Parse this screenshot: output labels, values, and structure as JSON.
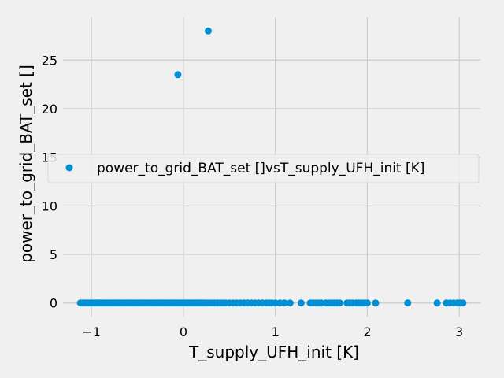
{
  "chart_data": {
    "type": "scatter",
    "title": "",
    "xlabel": "T_supply_UFH_init [K]",
    "ylabel": "power_to_grid_BAT_set []",
    "xlim": [
      -1.31,
      3.23
    ],
    "ylim": [
      -1.4,
      29.4
    ],
    "xticks": [
      -1,
      0,
      1,
      2,
      3
    ],
    "xtick_labels": [
      "−1",
      "0",
      "1",
      "2",
      "3"
    ],
    "yticks": [
      0,
      5,
      10,
      15,
      20,
      25
    ],
    "ytick_labels": [
      "0",
      "5",
      "10",
      "15",
      "20",
      "25"
    ],
    "grid": true,
    "legend_position": "center-right",
    "marker_color": "#008fd5",
    "series": [
      {
        "name": "power_to_grid_BAT_set []vsT_supply_UFH_init [K]",
        "points": [
          {
            "x": 0.27,
            "y": 28.0
          },
          {
            "x": -0.06,
            "y": 23.5
          },
          {
            "x": -1.12,
            "y": 0
          },
          {
            "x": -1.1,
            "y": 0
          },
          {
            "x": -1.08,
            "y": 0
          },
          {
            "x": -1.06,
            "y": 0
          },
          {
            "x": -1.04,
            "y": 0
          },
          {
            "x": -1.02,
            "y": 0
          },
          {
            "x": -1.0,
            "y": 0
          },
          {
            "x": -0.98,
            "y": 0
          },
          {
            "x": -0.96,
            "y": 0
          },
          {
            "x": -0.94,
            "y": 0
          },
          {
            "x": -0.92,
            "y": 0
          },
          {
            "x": -0.9,
            "y": 0
          },
          {
            "x": -0.88,
            "y": 0
          },
          {
            "x": -0.86,
            "y": 0
          },
          {
            "x": -0.84,
            "y": 0
          },
          {
            "x": -0.82,
            "y": 0
          },
          {
            "x": -0.8,
            "y": 0
          },
          {
            "x": -0.78,
            "y": 0
          },
          {
            "x": -0.76,
            "y": 0
          },
          {
            "x": -0.74,
            "y": 0
          },
          {
            "x": -0.72,
            "y": 0
          },
          {
            "x": -0.7,
            "y": 0
          },
          {
            "x": -0.68,
            "y": 0
          },
          {
            "x": -0.66,
            "y": 0
          },
          {
            "x": -0.64,
            "y": 0
          },
          {
            "x": -0.62,
            "y": 0
          },
          {
            "x": -0.6,
            "y": 0
          },
          {
            "x": -0.58,
            "y": 0
          },
          {
            "x": -0.56,
            "y": 0
          },
          {
            "x": -0.54,
            "y": 0
          },
          {
            "x": -0.52,
            "y": 0
          },
          {
            "x": -0.5,
            "y": 0
          },
          {
            "x": -0.48,
            "y": 0
          },
          {
            "x": -0.46,
            "y": 0
          },
          {
            "x": -0.44,
            "y": 0
          },
          {
            "x": -0.42,
            "y": 0
          },
          {
            "x": -0.4,
            "y": 0
          },
          {
            "x": -0.38,
            "y": 0
          },
          {
            "x": -0.36,
            "y": 0
          },
          {
            "x": -0.34,
            "y": 0
          },
          {
            "x": -0.32,
            "y": 0
          },
          {
            "x": -0.3,
            "y": 0
          },
          {
            "x": -0.28,
            "y": 0
          },
          {
            "x": -0.26,
            "y": 0
          },
          {
            "x": -0.24,
            "y": 0
          },
          {
            "x": -0.22,
            "y": 0
          },
          {
            "x": -0.2,
            "y": 0
          },
          {
            "x": -0.18,
            "y": 0
          },
          {
            "x": -0.16,
            "y": 0
          },
          {
            "x": -0.14,
            "y": 0
          },
          {
            "x": -0.12,
            "y": 0
          },
          {
            "x": -0.1,
            "y": 0
          },
          {
            "x": -0.08,
            "y": 0
          },
          {
            "x": -0.06,
            "y": 0
          },
          {
            "x": -0.04,
            "y": 0
          },
          {
            "x": -0.02,
            "y": 0
          },
          {
            "x": 0.0,
            "y": 0
          },
          {
            "x": 0.02,
            "y": 0
          },
          {
            "x": 0.04,
            "y": 0
          },
          {
            "x": 0.06,
            "y": 0
          },
          {
            "x": 0.08,
            "y": 0
          },
          {
            "x": 0.1,
            "y": 0
          },
          {
            "x": 0.12,
            "y": 0
          },
          {
            "x": 0.14,
            "y": 0
          },
          {
            "x": 0.16,
            "y": 0
          },
          {
            "x": 0.18,
            "y": 0
          },
          {
            "x": 0.2,
            "y": 0
          },
          {
            "x": 0.22,
            "y": 0
          },
          {
            "x": 0.25,
            "y": 0
          },
          {
            "x": 0.28,
            "y": 0
          },
          {
            "x": 0.31,
            "y": 0
          },
          {
            "x": 0.34,
            "y": 0
          },
          {
            "x": 0.37,
            "y": 0
          },
          {
            "x": 0.4,
            "y": 0
          },
          {
            "x": 0.43,
            "y": 0
          },
          {
            "x": 0.46,
            "y": 0
          },
          {
            "x": 0.5,
            "y": 0
          },
          {
            "x": 0.54,
            "y": 0
          },
          {
            "x": 0.58,
            "y": 0
          },
          {
            "x": 0.62,
            "y": 0
          },
          {
            "x": 0.66,
            "y": 0
          },
          {
            "x": 0.7,
            "y": 0
          },
          {
            "x": 0.74,
            "y": 0
          },
          {
            "x": 0.78,
            "y": 0
          },
          {
            "x": 0.82,
            "y": 0
          },
          {
            "x": 0.86,
            "y": 0
          },
          {
            "x": 0.9,
            "y": 0
          },
          {
            "x": 0.93,
            "y": 0
          },
          {
            "x": 0.96,
            "y": 0
          },
          {
            "x": 1.0,
            "y": 0
          },
          {
            "x": 1.05,
            "y": 0
          },
          {
            "x": 1.1,
            "y": 0
          },
          {
            "x": 1.16,
            "y": 0
          },
          {
            "x": 1.28,
            "y": 0
          },
          {
            "x": 1.38,
            "y": 0
          },
          {
            "x": 1.41,
            "y": 0
          },
          {
            "x": 1.44,
            "y": 0
          },
          {
            "x": 1.47,
            "y": 0
          },
          {
            "x": 1.5,
            "y": 0
          },
          {
            "x": 1.55,
            "y": 0
          },
          {
            "x": 1.58,
            "y": 0
          },
          {
            "x": 1.61,
            "y": 0
          },
          {
            "x": 1.64,
            "y": 0
          },
          {
            "x": 1.67,
            "y": 0
          },
          {
            "x": 1.7,
            "y": 0
          },
          {
            "x": 1.78,
            "y": 0
          },
          {
            "x": 1.81,
            "y": 0
          },
          {
            "x": 1.84,
            "y": 0
          },
          {
            "x": 1.88,
            "y": 0
          },
          {
            "x": 1.91,
            "y": 0
          },
          {
            "x": 1.94,
            "y": 0
          },
          {
            "x": 1.97,
            "y": 0
          },
          {
            "x": 2.0,
            "y": 0
          },
          {
            "x": 2.09,
            "y": 0
          },
          {
            "x": 2.44,
            "y": 0
          },
          {
            "x": 2.76,
            "y": 0
          },
          {
            "x": 2.86,
            "y": 0
          },
          {
            "x": 2.9,
            "y": 0
          },
          {
            "x": 2.94,
            "y": 0
          },
          {
            "x": 2.98,
            "y": 0
          },
          {
            "x": 3.01,
            "y": 0
          },
          {
            "x": 3.04,
            "y": 0
          }
        ]
      }
    ]
  }
}
